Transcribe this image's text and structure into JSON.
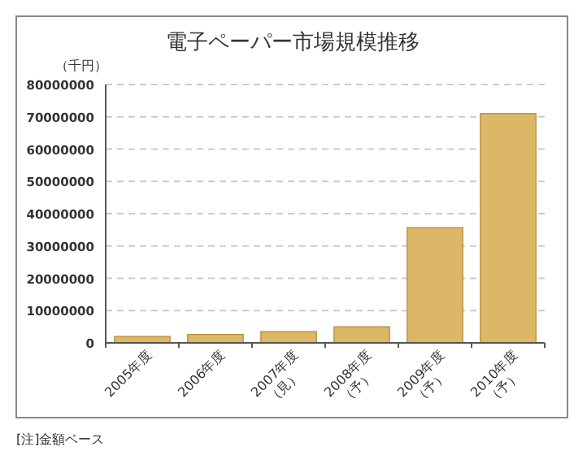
{
  "chart_data": {
    "type": "bar",
    "title": "電子ペーパー市場規模推移",
    "ylabel": "（千円）",
    "categories": [
      "2005年度",
      "2006年度",
      "2007年度\n（見）",
      "2008年度\n（予）",
      "2009年度\n（予）",
      "2010年度\n（予）"
    ],
    "values": [
      2000000,
      2600000,
      3500000,
      5000000,
      35700000,
      71000000
    ],
    "color": "#dcb768",
    "ylim": [
      0,
      80000000
    ],
    "yticks": [
      0,
      10000000,
      20000000,
      30000000,
      40000000,
      50000000,
      60000000,
      70000000,
      80000000
    ],
    "grid": "y",
    "annotations": [
      "[注]金額ベース"
    ]
  }
}
